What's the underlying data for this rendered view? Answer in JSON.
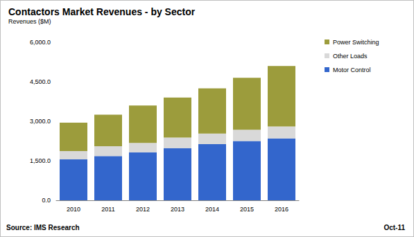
{
  "chart_data": {
    "type": "bar",
    "title": "Contactors Market Revenues - by Sector",
    "y_label": "Revenues ($M)",
    "annotations": [
      "Source: IMS Research",
      "Oct-11"
    ],
    "categories": [
      "2010",
      "2011",
      "2012",
      "2013",
      "2014",
      "2015",
      "2016"
    ],
    "series": [
      {
        "name": "Motor Control",
        "color": "#3366cc",
        "values": [
          1550,
          1680,
          1820,
          1980,
          2130,
          2250,
          2350
        ]
      },
      {
        "name": "Other Loads",
        "color": "#d9d9d9",
        "values": [
          320,
          370,
          360,
          400,
          400,
          430,
          450
        ]
      },
      {
        "name": "Power Switching",
        "color": "#9c9c3c",
        "values": [
          1080,
          1200,
          1420,
          1520,
          1720,
          1970,
          2300
        ]
      }
    ],
    "stacked": true,
    "ylim": [
      0,
      6000
    ],
    "yticks": [
      {
        "value": 0,
        "label": "0.0"
      },
      {
        "value": 1500,
        "label": "1,500.0"
      },
      {
        "value": 3000,
        "label": "3,000.0"
      },
      {
        "value": 4500,
        "label": "4,500.0"
      },
      {
        "value": 6000,
        "label": "6,000.0"
      }
    ],
    "grid": false,
    "legend": "top-right"
  }
}
